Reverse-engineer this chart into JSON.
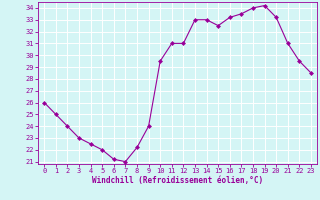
{
  "x": [
    0,
    1,
    2,
    3,
    4,
    5,
    6,
    7,
    8,
    9,
    10,
    11,
    12,
    13,
    14,
    15,
    16,
    17,
    18,
    19,
    20,
    21,
    22,
    23
  ],
  "y": [
    26.0,
    25.0,
    24.0,
    23.0,
    22.5,
    22.0,
    21.2,
    21.0,
    22.2,
    24.0,
    29.5,
    31.0,
    31.0,
    33.0,
    33.0,
    32.5,
    33.2,
    33.5,
    34.0,
    34.2,
    33.2,
    31.0,
    29.5,
    28.5
  ],
  "line_color": "#990099",
  "marker": "D",
  "marker_size": 2.0,
  "bg_color": "#d4f5f5",
  "grid_color": "#ffffff",
  "xlabel": "Windchill (Refroidissement éolien,°C)",
  "ylim": [
    20.8,
    34.5
  ],
  "xlim": [
    -0.5,
    23.5
  ],
  "yticks": [
    21,
    22,
    23,
    24,
    25,
    26,
    27,
    28,
    29,
    30,
    31,
    32,
    33,
    34
  ],
  "xticks": [
    0,
    1,
    2,
    3,
    4,
    5,
    6,
    7,
    8,
    9,
    10,
    11,
    12,
    13,
    14,
    15,
    16,
    17,
    18,
    19,
    20,
    21,
    22,
    23
  ],
  "label_fontsize": 5.5,
  "tick_fontsize": 5.0
}
